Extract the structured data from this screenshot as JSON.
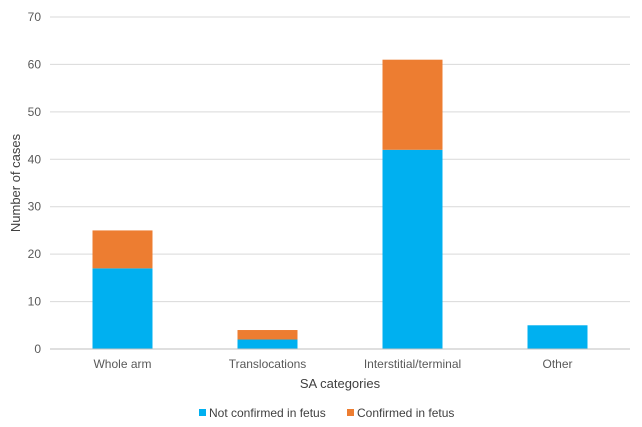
{
  "chart_data": {
    "type": "bar",
    "stacked": true,
    "title": "",
    "xlabel": "SA categories",
    "ylabel": "Number of cases",
    "ylim": [
      0,
      70
    ],
    "yticks": [
      0,
      10,
      20,
      30,
      40,
      50,
      60,
      70
    ],
    "categories": [
      "Whole arm",
      "Translocations",
      "Interstitial/terminal",
      "Other"
    ],
    "series": [
      {
        "name": "Not confirmed in fetus",
        "color": "#00B0F0",
        "values": [
          17,
          2,
          42,
          5
        ]
      },
      {
        "name": "Confirmed in fetus",
        "color": "#ED7D31",
        "values": [
          8,
          2,
          19,
          0
        ]
      }
    ],
    "grid": true,
    "legend_position": "bottom"
  }
}
